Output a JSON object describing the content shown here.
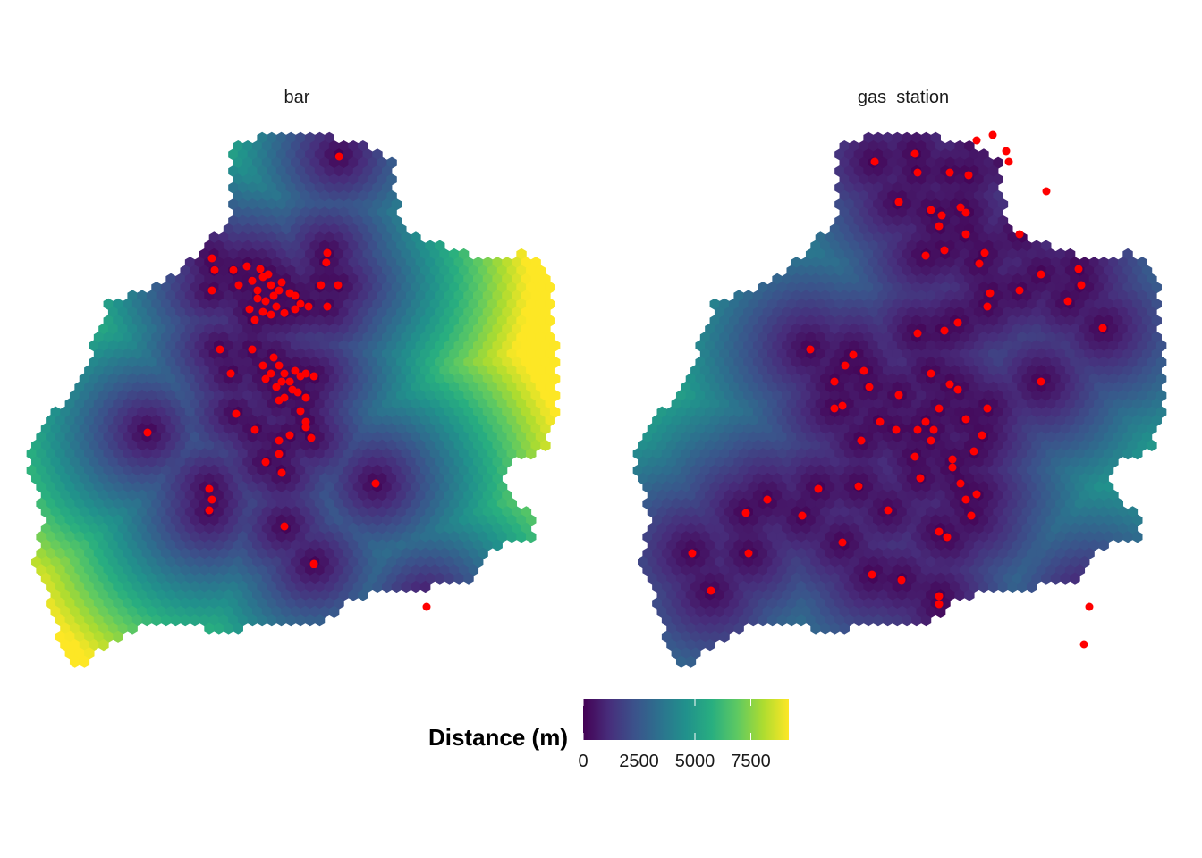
{
  "chart_data": {
    "type": "heatmap",
    "description_free": true,
    "panels": [
      {
        "facet_label": "bar",
        "distance_field": {
          "min": 0,
          "max": 9200,
          "field_scale": 1.0,
          "high_corner": "bottom-left"
        },
        "points": [
          {
            "u": 0.582,
            "v": 0.05
          },
          {
            "u": 0.56,
            "v": 0.23
          },
          {
            "u": 0.558,
            "v": 0.248
          },
          {
            "u": 0.548,
            "v": 0.29
          },
          {
            "u": 0.58,
            "v": 0.29
          },
          {
            "u": 0.56,
            "v": 0.33
          },
          {
            "u": 0.345,
            "v": 0.24
          },
          {
            "u": 0.35,
            "v": 0.262
          },
          {
            "u": 0.385,
            "v": 0.262
          },
          {
            "u": 0.41,
            "v": 0.255
          },
          {
            "u": 0.395,
            "v": 0.29
          },
          {
            "u": 0.42,
            "v": 0.282
          },
          {
            "u": 0.43,
            "v": 0.3
          },
          {
            "u": 0.44,
            "v": 0.275
          },
          {
            "u": 0.455,
            "v": 0.29
          },
          {
            "u": 0.46,
            "v": 0.31
          },
          {
            "u": 0.445,
            "v": 0.32
          },
          {
            "u": 0.47,
            "v": 0.3
          },
          {
            "u": 0.44,
            "v": 0.34
          },
          {
            "u": 0.425,
            "v": 0.355
          },
          {
            "u": 0.455,
            "v": 0.345
          },
          {
            "u": 0.435,
            "v": 0.26
          },
          {
            "u": 0.49,
            "v": 0.305
          },
          {
            "u": 0.465,
            "v": 0.33
          },
          {
            "u": 0.48,
            "v": 0.342
          },
          {
            "u": 0.51,
            "v": 0.325
          },
          {
            "u": 0.525,
            "v": 0.33
          },
          {
            "u": 0.5,
            "v": 0.335
          },
          {
            "u": 0.42,
            "v": 0.41
          },
          {
            "u": 0.44,
            "v": 0.44
          },
          {
            "u": 0.46,
            "v": 0.425
          },
          {
            "u": 0.47,
            "v": 0.44
          },
          {
            "u": 0.455,
            "v": 0.455
          },
          {
            "u": 0.48,
            "v": 0.455
          },
          {
            "u": 0.445,
            "v": 0.465
          },
          {
            "u": 0.475,
            "v": 0.47
          },
          {
            "u": 0.465,
            "v": 0.48
          },
          {
            "u": 0.49,
            "v": 0.47
          },
          {
            "u": 0.5,
            "v": 0.45
          },
          {
            "u": 0.51,
            "v": 0.46
          },
          {
            "u": 0.495,
            "v": 0.485
          },
          {
            "u": 0.505,
            "v": 0.49
          },
          {
            "u": 0.48,
            "v": 0.5
          },
          {
            "u": 0.52,
            "v": 0.455
          },
          {
            "u": 0.535,
            "v": 0.46
          },
          {
            "u": 0.47,
            "v": 0.505
          },
          {
            "u": 0.52,
            "v": 0.5
          },
          {
            "u": 0.51,
            "v": 0.525
          },
          {
            "u": 0.52,
            "v": 0.545
          },
          {
            "u": 0.345,
            "v": 0.3
          },
          {
            "u": 0.36,
            "v": 0.41
          },
          {
            "u": 0.38,
            "v": 0.455
          },
          {
            "u": 0.39,
            "v": 0.53
          },
          {
            "u": 0.425,
            "v": 0.56
          },
          {
            "u": 0.47,
            "v": 0.58
          },
          {
            "u": 0.47,
            "v": 0.605
          },
          {
            "u": 0.445,
            "v": 0.62
          },
          {
            "u": 0.49,
            "v": 0.57
          },
          {
            "u": 0.52,
            "v": 0.555
          },
          {
            "u": 0.53,
            "v": 0.575
          },
          {
            "u": 0.475,
            "v": 0.64
          },
          {
            "u": 0.225,
            "v": 0.565
          },
          {
            "u": 0.34,
            "v": 0.67
          },
          {
            "u": 0.345,
            "v": 0.69
          },
          {
            "u": 0.34,
            "v": 0.71
          },
          {
            "u": 0.65,
            "v": 0.66
          },
          {
            "u": 0.48,
            "v": 0.74
          },
          {
            "u": 0.535,
            "v": 0.81
          },
          {
            "u": 0.745,
            "v": 0.89
          },
          {
            "u": 0.45,
            "v": 0.27
          },
          {
            "u": 0.43,
            "v": 0.315
          },
          {
            "u": 0.475,
            "v": 0.285
          },
          {
            "u": 0.5,
            "v": 0.31
          },
          {
            "u": 0.415,
            "v": 0.335
          }
        ]
      },
      {
        "facet_label": "gas  station",
        "distance_field": {
          "min": 0,
          "max": 9200,
          "field_scale": 0.78,
          "high_corner": "bottom-left"
        },
        "points": [
          {
            "u": 0.64,
            "v": 0.02
          },
          {
            "u": 0.7,
            "v": 0.06
          },
          {
            "u": 0.525,
            "v": 0.045
          },
          {
            "u": 0.45,
            "v": 0.06
          },
          {
            "u": 0.53,
            "v": 0.08
          },
          {
            "u": 0.59,
            "v": 0.08
          },
          {
            "u": 0.625,
            "v": 0.085
          },
          {
            "u": 0.495,
            "v": 0.135
          },
          {
            "u": 0.555,
            "v": 0.15
          },
          {
            "u": 0.61,
            "v": 0.145
          },
          {
            "u": 0.62,
            "v": 0.155
          },
          {
            "u": 0.575,
            "v": 0.16
          },
          {
            "u": 0.57,
            "v": 0.18
          },
          {
            "u": 0.62,
            "v": 0.195
          },
          {
            "u": 0.72,
            "v": 0.195
          },
          {
            "u": 0.58,
            "v": 0.225
          },
          {
            "u": 0.545,
            "v": 0.235
          },
          {
            "u": 0.645,
            "v": 0.25
          },
          {
            "u": 0.655,
            "v": 0.23
          },
          {
            "u": 0.76,
            "v": 0.27
          },
          {
            "u": 0.665,
            "v": 0.305
          },
          {
            "u": 0.66,
            "v": 0.33
          },
          {
            "u": 0.72,
            "v": 0.3
          },
          {
            "u": 0.83,
            "v": 0.26
          },
          {
            "u": 0.835,
            "v": 0.29
          },
          {
            "u": 0.81,
            "v": 0.32
          },
          {
            "u": 0.875,
            "v": 0.37
          },
          {
            "u": 0.605,
            "v": 0.36
          },
          {
            "u": 0.58,
            "v": 0.375
          },
          {
            "u": 0.53,
            "v": 0.38
          },
          {
            "u": 0.33,
            "v": 0.41
          },
          {
            "u": 0.41,
            "v": 0.42
          },
          {
            "u": 0.395,
            "v": 0.44
          },
          {
            "u": 0.43,
            "v": 0.45
          },
          {
            "u": 0.44,
            "v": 0.48
          },
          {
            "u": 0.375,
            "v": 0.47
          },
          {
            "u": 0.375,
            "v": 0.52
          },
          {
            "u": 0.39,
            "v": 0.515
          },
          {
            "u": 0.495,
            "v": 0.495
          },
          {
            "u": 0.555,
            "v": 0.455
          },
          {
            "u": 0.59,
            "v": 0.475
          },
          {
            "u": 0.605,
            "v": 0.485
          },
          {
            "u": 0.57,
            "v": 0.52
          },
          {
            "u": 0.49,
            "v": 0.56
          },
          {
            "u": 0.46,
            "v": 0.545
          },
          {
            "u": 0.545,
            "v": 0.545
          },
          {
            "u": 0.56,
            "v": 0.56
          },
          {
            "u": 0.555,
            "v": 0.58
          },
          {
            "u": 0.53,
            "v": 0.56
          },
          {
            "u": 0.425,
            "v": 0.58
          },
          {
            "u": 0.62,
            "v": 0.54
          },
          {
            "u": 0.66,
            "v": 0.52
          },
          {
            "u": 0.65,
            "v": 0.57
          },
          {
            "u": 0.635,
            "v": 0.6
          },
          {
            "u": 0.595,
            "v": 0.615
          },
          {
            "u": 0.525,
            "v": 0.61
          },
          {
            "u": 0.595,
            "v": 0.63
          },
          {
            "u": 0.535,
            "v": 0.65
          },
          {
            "u": 0.42,
            "v": 0.665
          },
          {
            "u": 0.345,
            "v": 0.67
          },
          {
            "u": 0.475,
            "v": 0.71
          },
          {
            "u": 0.61,
            "v": 0.66
          },
          {
            "u": 0.62,
            "v": 0.69
          },
          {
            "u": 0.64,
            "v": 0.68
          },
          {
            "u": 0.63,
            "v": 0.72
          },
          {
            "u": 0.25,
            "v": 0.69
          },
          {
            "u": 0.21,
            "v": 0.715
          },
          {
            "u": 0.315,
            "v": 0.72
          },
          {
            "u": 0.215,
            "v": 0.79
          },
          {
            "u": 0.39,
            "v": 0.77
          },
          {
            "u": 0.57,
            "v": 0.75
          },
          {
            "u": 0.585,
            "v": 0.76
          },
          {
            "u": 0.5,
            "v": 0.84
          },
          {
            "u": 0.445,
            "v": 0.83
          },
          {
            "u": 0.57,
            "v": 0.87
          },
          {
            "u": 0.57,
            "v": 0.885
          },
          {
            "u": 0.11,
            "v": 0.79
          },
          {
            "u": 0.145,
            "v": 0.86
          },
          {
            "u": 0.85,
            "v": 0.89
          },
          {
            "u": 0.84,
            "v": 0.96
          }
        ],
        "points_outside": [
          {
            "u": 0.67,
            "v": 0.01
          },
          {
            "u": 0.695,
            "v": 0.04
          },
          {
            "u": 0.77,
            "v": 0.115
          },
          {
            "u": 0.76,
            "v": 0.47
          }
        ]
      }
    ],
    "legend": {
      "title": "Distance (m)",
      "position": "bottom",
      "ticks": [
        0,
        2500,
        5000,
        7500
      ],
      "tick_labels": [
        "0",
        "2500",
        "5000",
        "7500"
      ],
      "range": [
        0,
        9200
      ]
    },
    "colorscale": "viridis",
    "point_color": "#ff0000",
    "grid": false,
    "axes": false
  }
}
